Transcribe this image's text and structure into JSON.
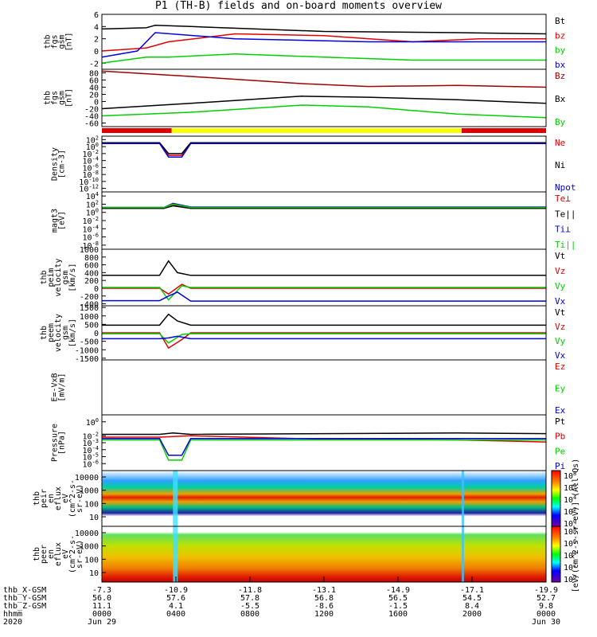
{
  "title": "P1 (TH-B) fields and on-board moments overview",
  "colors": {
    "black": "#000000",
    "red": "#e00000",
    "green": "#00d000",
    "blue": "#0000e0",
    "darkred": "#a00000",
    "yellow": "#ffff00"
  },
  "chart_data": [
    {
      "type": "line",
      "ylabel": [
        "thb",
        "fgs",
        "gsm",
        "[nT]"
      ],
      "ylim": [
        -3,
        6
      ],
      "yticks": [
        6,
        4,
        2,
        0,
        -2
      ],
      "legend": [
        {
          "name": "Bt",
          "color": "black"
        },
        {
          "name": "bz",
          "color": "red"
        },
        {
          "name": "by",
          "color": "green"
        },
        {
          "name": "bx",
          "color": "blue"
        }
      ],
      "series": [
        {
          "name": "Bt",
          "color": "black",
          "x": [
            0,
            0.1,
            0.12,
            0.2,
            0.5,
            0.8,
            1
          ],
          "values": [
            3.6,
            3.8,
            4.2,
            4.0,
            3.2,
            3.0,
            2.8
          ]
        },
        {
          "name": "bz",
          "color": "red",
          "x": [
            0,
            0.1,
            0.15,
            0.3,
            0.5,
            0.7,
            0.85,
            1
          ],
          "values": [
            0,
            0.5,
            1.5,
            2.8,
            2.5,
            1.5,
            2.0,
            2.0
          ]
        },
        {
          "name": "by",
          "color": "green",
          "x": [
            0,
            0.1,
            0.15,
            0.3,
            0.5,
            0.7,
            1
          ],
          "values": [
            -2,
            -1,
            -1,
            -0.5,
            -1,
            -1.5,
            -1.5
          ]
        },
        {
          "name": "bx",
          "color": "blue",
          "x": [
            0,
            0.08,
            0.12,
            0.3,
            0.6,
            0.85,
            1
          ],
          "values": [
            -1,
            0,
            3,
            2.0,
            1.5,
            1.5,
            1.5
          ]
        }
      ]
    },
    {
      "type": "line",
      "ylabel": [
        "thb",
        "fgs",
        "gsm",
        "[nT]"
      ],
      "ylim": [
        -70,
        90
      ],
      "yticks": [
        80,
        60,
        40,
        20,
        0,
        -20,
        -40,
        -60
      ],
      "legend": [
        {
          "name": "Bz",
          "color": "darkred"
        },
        {
          "name": "Bx",
          "color": "black"
        },
        {
          "name": "By",
          "color": "green"
        }
      ],
      "series": [
        {
          "name": "Bz",
          "color": "darkred",
          "x": [
            0,
            0.2,
            0.45,
            0.6,
            0.8,
            1
          ],
          "values": [
            85,
            70,
            50,
            42,
            45,
            40
          ]
        },
        {
          "name": "Bx",
          "color": "black",
          "x": [
            0,
            0.2,
            0.45,
            0.6,
            0.8,
            1
          ],
          "values": [
            -20,
            -5,
            15,
            12,
            5,
            -5
          ]
        },
        {
          "name": "By",
          "color": "green",
          "x": [
            0,
            0.2,
            0.45,
            0.6,
            0.8,
            1
          ],
          "values": [
            -40,
            -30,
            -10,
            -15,
            -35,
            -45
          ]
        }
      ]
    },
    {
      "type": "line",
      "ylabel": [
        "Density",
        "[cm-3]"
      ],
      "log": true,
      "ylim": [
        -13,
        3
      ],
      "yticks": [
        "10^2",
        "10^0",
        "10^-2",
        "10^-4",
        "10^-6",
        "10^-8",
        "10^-10",
        "10^-12"
      ],
      "legend": [
        {
          "name": "Ne",
          "color": "red"
        },
        {
          "name": "Ni",
          "color": "black"
        },
        {
          "name": "Npot",
          "color": "blue"
        }
      ],
      "series": [
        {
          "name": "Ne",
          "color": "red",
          "x": [
            0,
            0.13,
            0.15,
            0.18,
            0.2,
            1
          ],
          "values": [
            1,
            1,
            -2.5,
            -2.5,
            1,
            1
          ]
        },
        {
          "name": "Ni",
          "color": "black",
          "x": [
            0,
            0.13,
            0.15,
            0.18,
            0.2,
            1
          ],
          "values": [
            1.1,
            1.1,
            -2,
            -2,
            1.1,
            1.1
          ]
        },
        {
          "name": "Npot",
          "color": "blue",
          "x": [
            0,
            0.13,
            0.15,
            0.18,
            0.2,
            1
          ],
          "values": [
            0.9,
            0.9,
            -3,
            -3,
            0.9,
            0.9
          ]
        }
      ]
    },
    {
      "type": "line",
      "ylabel": [
        "magt3",
        "[eV]"
      ],
      "log": true,
      "ylim": [
        -9,
        5
      ],
      "yticks": [
        "10^4",
        "10^2",
        "10^0",
        "10^-2",
        "10^-4",
        "10^-6",
        "10^-8"
      ],
      "legend": [
        {
          "name": "Te⊥",
          "color": "red"
        },
        {
          "name": "Te||",
          "color": "black"
        },
        {
          "name": "Ti⊥",
          "color": "blue"
        },
        {
          "name": "Ti||",
          "color": "green"
        }
      ],
      "series": [
        {
          "name": "Te⊥",
          "color": "red",
          "x": [
            0,
            0.14,
            0.16,
            0.2,
            1
          ],
          "values": [
            1,
            1,
            1.8,
            1,
            1
          ]
        },
        {
          "name": "Te||",
          "color": "black",
          "x": [
            0,
            0.14,
            0.16,
            0.2,
            1
          ],
          "values": [
            1,
            1,
            1.6,
            1,
            1
          ]
        },
        {
          "name": "Ti⊥",
          "color": "blue",
          "x": [
            0,
            0.14,
            0.16,
            0.2,
            1
          ],
          "values": [
            1.2,
            1.2,
            2.2,
            1.3,
            1.3
          ]
        },
        {
          "name": "Ti||",
          "color": "green",
          "x": [
            0,
            0.14,
            0.16,
            0.2,
            1
          ],
          "values": [
            1.2,
            1.2,
            2.0,
            1.2,
            1.2
          ]
        }
      ]
    },
    {
      "type": "line",
      "ylabel": [
        "thb",
        "peim",
        "velocity",
        "gsm",
        "[km/s]"
      ],
      "ylim": [
        -450,
        1000
      ],
      "yticks": [
        1000,
        800,
        600,
        400,
        200,
        0,
        -200,
        -400
      ],
      "legend": [
        {
          "name": "Vt",
          "color": "black"
        },
        {
          "name": "Vz",
          "color": "red"
        },
        {
          "name": "Vy",
          "color": "green"
        },
        {
          "name": "Vx",
          "color": "blue"
        }
      ],
      "series": [
        {
          "name": "Vt",
          "color": "black",
          "x": [
            0,
            0.13,
            0.15,
            0.17,
            0.2,
            1
          ],
          "values": [
            330,
            330,
            700,
            400,
            330,
            330
          ]
        },
        {
          "name": "Vz",
          "color": "red",
          "x": [
            0,
            0.13,
            0.15,
            0.18,
            0.2,
            1
          ],
          "values": [
            0,
            0,
            -150,
            100,
            0,
            0
          ]
        },
        {
          "name": "Vy",
          "color": "green",
          "x": [
            0,
            0.13,
            0.15,
            0.18,
            0.2,
            1
          ],
          "values": [
            20,
            20,
            -300,
            60,
            20,
            20
          ]
        },
        {
          "name": "Vx",
          "color": "blue",
          "x": [
            0,
            0.13,
            0.15,
            0.17,
            0.2,
            1
          ],
          "values": [
            -320,
            -320,
            -200,
            -100,
            -330,
            -330
          ]
        }
      ]
    },
    {
      "type": "line",
      "ylabel": [
        "thb",
        "peem",
        "velocity",
        "gsm",
        "[km/s]"
      ],
      "ylim": [
        -1600,
        1600
      ],
      "yticks": [
        1500,
        1000,
        500,
        0,
        -500,
        -1000,
        -1500
      ],
      "legend": [
        {
          "name": "Vt",
          "color": "black"
        },
        {
          "name": "Vz",
          "color": "red"
        },
        {
          "name": "Vy",
          "color": "green"
        },
        {
          "name": "Vx",
          "color": "blue"
        }
      ],
      "series": [
        {
          "name": "Vt",
          "color": "black",
          "x": [
            0,
            0.13,
            0.15,
            0.17,
            0.2,
            1
          ],
          "values": [
            450,
            450,
            1100,
            700,
            450,
            450
          ]
        },
        {
          "name": "Vz",
          "color": "red",
          "x": [
            0,
            0.13,
            0.15,
            0.18,
            0.2,
            1
          ],
          "values": [
            0,
            0,
            -900,
            -400,
            0,
            0
          ]
        },
        {
          "name": "Vy",
          "color": "green",
          "x": [
            0,
            0.13,
            0.15,
            0.18,
            0.2,
            1
          ],
          "values": [
            -50,
            -50,
            -600,
            -100,
            -50,
            -50
          ]
        },
        {
          "name": "Vx",
          "color": "blue",
          "x": [
            0,
            0.13,
            0.15,
            0.17,
            0.2,
            1
          ],
          "values": [
            -350,
            -350,
            -300,
            -200,
            -350,
            -350
          ]
        }
      ]
    },
    {
      "type": "line",
      "ylabel": [
        "E=-VxB",
        "[mV/m]"
      ],
      "ylim": [
        -1,
        1
      ],
      "yticks": [],
      "legend": [
        {
          "name": "Ez",
          "color": "red"
        },
        {
          "name": "Ey",
          "color": "green"
        },
        {
          "name": "Ex",
          "color": "blue"
        }
      ],
      "series": []
    },
    {
      "type": "line",
      "ylabel": [
        "Pressure",
        "[nPa]"
      ],
      "log": true,
      "ylim": [
        -7,
        1
      ],
      "yticks": [
        "10^0",
        "10^-2",
        "10^-3",
        "10^-4",
        "10^-5",
        "10^-6"
      ],
      "legend": [
        {
          "name": "Pt",
          "color": "black"
        },
        {
          "name": "Pb",
          "color": "red"
        },
        {
          "name": "Pe",
          "color": "green"
        },
        {
          "name": "Pi",
          "color": "blue"
        }
      ],
      "series": [
        {
          "name": "Pt",
          "color": "black",
          "x": [
            0,
            0.13,
            0.16,
            0.2,
            0.8,
            1
          ],
          "values": [
            -1.8,
            -1.8,
            -1.6,
            -1.8,
            -1.6,
            -1.7
          ]
        },
        {
          "name": "Pb",
          "color": "red",
          "x": [
            0,
            0.13,
            0.2,
            0.5,
            0.8,
            1
          ],
          "values": [
            -2.2,
            -2.2,
            -2.0,
            -2.5,
            -2.6,
            -2.9
          ]
        },
        {
          "name": "Pe",
          "color": "green",
          "x": [
            0,
            0.13,
            0.15,
            0.18,
            0.2,
            1
          ],
          "values": [
            -2.6,
            -2.6,
            -5.5,
            -5.5,
            -2.6,
            -2.6
          ]
        },
        {
          "name": "Pi",
          "color": "blue",
          "x": [
            0,
            0.13,
            0.15,
            0.18,
            0.2,
            1
          ],
          "values": [
            -2.4,
            -2.4,
            -4.8,
            -4.8,
            -2.4,
            -2.4
          ]
        }
      ]
    },
    {
      "type": "heatmap",
      "ylabel": [
        "thb",
        "peir",
        "en",
        "eflux",
        "eV",
        "(cm^2-s-",
        "sr-eV)"
      ],
      "yticks": [
        "10000",
        "1000",
        "100",
        "10"
      ],
      "colorbar": {
        "ticks": [
          "10^8",
          "10^6",
          "10^4",
          "10^2",
          "10^0"
        ],
        "label": "[eV/(cm^2-s-sr-eV)] (All Qs)"
      }
    },
    {
      "type": "heatmap",
      "ylabel": [
        "thb",
        "peer",
        "en",
        "eflux",
        "eV",
        "(cm^2-s-",
        "sr-eV)"
      ],
      "yticks": [
        "10000",
        "1000",
        "100",
        "10"
      ],
      "colorbar": {
        "ticks": [
          "10^8",
          "10^6",
          "10^4",
          "10^2",
          "10^0"
        ],
        "label": "[eV/(cm^2-s-sr-eV)] (All Qs)"
      }
    }
  ],
  "mode_bar": {
    "segments": [
      {
        "from": 0,
        "to": 0.157,
        "color": "red"
      },
      {
        "from": 0.157,
        "to": 0.81,
        "color": "yellow"
      },
      {
        "from": 0.81,
        "to": 1,
        "color": "red"
      }
    ]
  },
  "xaxis": {
    "rows": [
      {
        "label": "thb_X-GSM",
        "values": [
          "-7.3",
          "-10.9",
          "-11.8",
          "-13.1",
          "-14.9",
          "-17.1",
          "-19.9"
        ]
      },
      {
        "label": "thb_Y-GSM",
        "values": [
          "56.0",
          "57.6",
          "57.8",
          "56.8",
          "56.5",
          "54.5",
          "52.7"
        ]
      },
      {
        "label": "thb_Z-GSM",
        "values": [
          "11.1",
          "4.1",
          "-5.5",
          "-8.6",
          "-1.5",
          "8.4",
          "9.8"
        ]
      },
      {
        "label": "hhmm",
        "values": [
          "0000",
          "0400",
          "0800",
          "1200",
          "1600",
          "2000",
          "0000"
        ]
      },
      {
        "label": "2020",
        "values": [
          "Jun 29",
          "",
          "",
          "",
          "",
          "",
          "Jun 30"
        ]
      }
    ]
  }
}
